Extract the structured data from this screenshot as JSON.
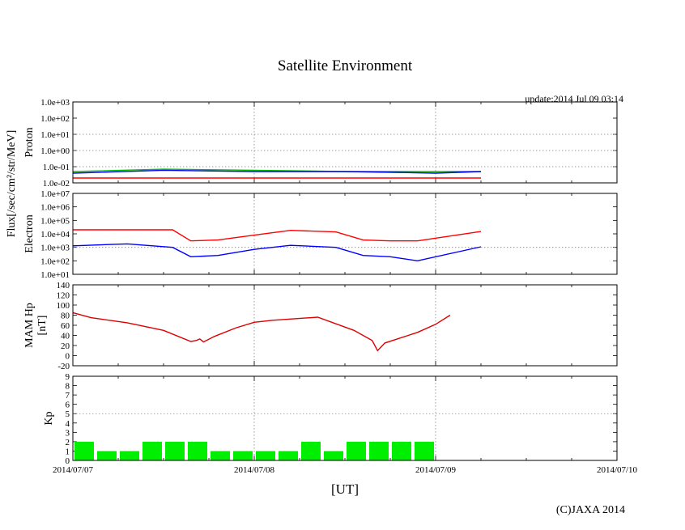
{
  "chart_data": {
    "type": "line",
    "title": "Satellite Environment",
    "update_label": "update:2014 Jul 09 03:14",
    "credit": "(C)JAXA 2014",
    "xlabel": "[UT]",
    "x_ticks": [
      "2014/07/07",
      "2014/07/08",
      "2014/07/09",
      "2014/07/10"
    ],
    "x_range_days": [
      0,
      3
    ],
    "flux_ylabel": "Flux[/sec/cm²/str/MeV]",
    "panels": [
      {
        "id": "proton",
        "ylabel": "Proton",
        "scale": "log",
        "ylim": [
          0.01,
          1000
        ],
        "y_ticks": [
          "1.0e-02",
          "1.0e-01",
          "1.0e+00",
          "1.0e+01",
          "1.0e+02",
          "1.0e+03"
        ],
        "grid_y": [
          0.1,
          1,
          10
        ],
        "series": [
          {
            "color": "#ff0000",
            "x": [
              0.0,
              2.25
            ],
            "y": [
              0.02,
              0.02
            ]
          },
          {
            "color": "#00bb00",
            "x": [
              0.0,
              0.5,
              1.0,
              1.5,
              2.0,
              2.25
            ],
            "y": [
              0.05,
              0.07,
              0.06,
              0.05,
              0.05,
              0.05
            ]
          },
          {
            "color": "#0000ff",
            "x": [
              0.0,
              0.5,
              1.0,
              1.5,
              2.0,
              2.25
            ],
            "y": [
              0.04,
              0.06,
              0.05,
              0.05,
              0.04,
              0.05
            ]
          }
        ]
      },
      {
        "id": "electron",
        "ylabel": "Electron",
        "scale": "log",
        "ylim": [
          10,
          10000000
        ],
        "y_ticks": [
          "1.0e+01",
          "1.0e+02",
          "1.0e+03",
          "1.0e+04",
          "1.0e+05",
          "1.0e+06",
          "1.0e+07"
        ],
        "grid_y": [
          1000
        ],
        "series": [
          {
            "color": "#ff0000",
            "x": [
              0.0,
              0.3,
              0.55,
              0.65,
              0.8,
              1.0,
              1.2,
              1.45,
              1.6,
              1.75,
              1.9,
              2.25
            ],
            "y": [
              20000,
              20000,
              20000,
              3000,
              3500,
              8000,
              18000,
              14000,
              3500,
              3000,
              3000,
              15000
            ]
          },
          {
            "color": "#0000ff",
            "x": [
              0.0,
              0.3,
              0.55,
              0.65,
              0.8,
              1.0,
              1.2,
              1.45,
              1.6,
              1.75,
              1.9,
              2.25
            ],
            "y": [
              1300,
              1800,
              1000,
              200,
              250,
              700,
              1400,
              1000,
              250,
              200,
              100,
              1100
            ]
          }
        ]
      },
      {
        "id": "mam",
        "ylabel": "MAM Hp",
        "ylabel2": "[nT]",
        "scale": "linear",
        "ylim": [
          -20,
          140
        ],
        "y_ticks": [
          "-20",
          "0",
          "20",
          "40",
          "60",
          "80",
          "100",
          "120",
          "140"
        ],
        "grid_y": [],
        "series": [
          {
            "color": "#dd0000",
            "x": [
              0.0,
              0.1,
              0.3,
              0.5,
              0.65,
              0.68,
              0.7,
              0.72,
              0.78,
              0.9,
              1.0,
              1.1,
              1.35,
              1.55,
              1.65,
              1.68,
              1.72,
              1.9,
              2.0,
              2.08
            ],
            "y": [
              85,
              75,
              65,
              50,
              28,
              30,
              33,
              27,
              38,
              55,
              66,
              70,
              76,
              50,
              30,
              10,
              25,
              46,
              62,
              80
            ]
          }
        ]
      },
      {
        "id": "kp",
        "ylabel": "Kp",
        "scale": "linear",
        "ylim": [
          0,
          9
        ],
        "y_ticks": [
          "0",
          "1",
          "2",
          "3",
          "4",
          "5",
          "6",
          "7",
          "8",
          "9"
        ],
        "grid_y": [
          5
        ],
        "bar_color": "#00ee00",
        "bars": [
          {
            "x": 0.0625,
            "value": 2
          },
          {
            "x": 0.1875,
            "value": 1
          },
          {
            "x": 0.3125,
            "value": 1
          },
          {
            "x": 0.4375,
            "value": 2
          },
          {
            "x": 0.5625,
            "value": 2
          },
          {
            "x": 0.6875,
            "value": 2
          },
          {
            "x": 0.8125,
            "value": 1
          },
          {
            "x": 0.9375,
            "value": 1
          },
          {
            "x": 1.0625,
            "value": 1
          },
          {
            "x": 1.1875,
            "value": 1
          },
          {
            "x": 1.3125,
            "value": 2
          },
          {
            "x": 1.4375,
            "value": 1
          },
          {
            "x": 1.5625,
            "value": 2
          },
          {
            "x": 1.6875,
            "value": 2
          },
          {
            "x": 1.8125,
            "value": 2
          },
          {
            "x": 1.9375,
            "value": 2
          }
        ]
      }
    ]
  }
}
